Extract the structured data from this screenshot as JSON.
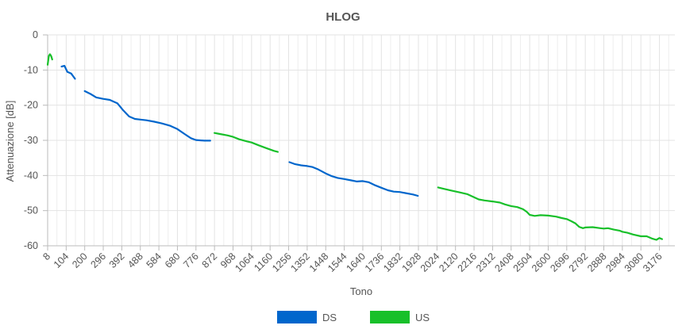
{
  "chart_data": {
    "type": "line",
    "title": "HLOG",
    "xlabel": "Tono",
    "ylabel": "Attenuazione [dB]",
    "xlim": [
      8,
      3256
    ],
    "ylim": [
      -60,
      0
    ],
    "x_ticks": [
      8,
      104,
      200,
      296,
      392,
      488,
      584,
      680,
      776,
      872,
      968,
      1064,
      1160,
      1256,
      1352,
      1448,
      1544,
      1640,
      1736,
      1832,
      1928,
      2024,
      2120,
      2216,
      2312,
      2408,
      2504,
      2600,
      2696,
      2792,
      2888,
      2984,
      3080,
      3176
    ],
    "y_ticks": [
      0,
      -10,
      -20,
      -30,
      -40,
      -50,
      -60
    ],
    "grid": true,
    "legend_position": "bottom",
    "series": [
      {
        "name": "DS",
        "color": "#0066cc",
        "segments": [
          [
            [
              80,
              -9.0
            ],
            [
              95,
              -8.8
            ],
            [
              110,
              -10.5
            ],
            [
              130,
              -11.0
            ],
            [
              150,
              -12.5
            ]
          ],
          [
            [
              200,
              -16.0
            ],
            [
              230,
              -16.8
            ],
            [
              260,
              -17.8
            ],
            [
              296,
              -18.2
            ],
            [
              330,
              -18.5
            ],
            [
              370,
              -19.5
            ],
            [
              400,
              -21.5
            ],
            [
              430,
              -23.2
            ],
            [
              460,
              -23.9
            ],
            [
              488,
              -24.1
            ],
            [
              520,
              -24.3
            ],
            [
              560,
              -24.7
            ],
            [
              600,
              -25.2
            ],
            [
              640,
              -25.8
            ],
            [
              680,
              -26.8
            ],
            [
              720,
              -28.3
            ],
            [
              750,
              -29.4
            ],
            [
              776,
              -29.9
            ],
            [
              820,
              -30.1
            ],
            [
              850,
              -30.1
            ]
          ],
          [
            [
              1260,
              -36.2
            ],
            [
              1290,
              -36.8
            ],
            [
              1320,
              -37.1
            ],
            [
              1352,
              -37.3
            ],
            [
              1380,
              -37.6
            ],
            [
              1410,
              -38.3
            ],
            [
              1448,
              -39.4
            ],
            [
              1480,
              -40.2
            ],
            [
              1510,
              -40.7
            ],
            [
              1544,
              -41.0
            ],
            [
              1580,
              -41.4
            ],
            [
              1610,
              -41.7
            ],
            [
              1640,
              -41.6
            ],
            [
              1670,
              -41.9
            ],
            [
              1700,
              -42.7
            ],
            [
              1736,
              -43.5
            ],
            [
              1770,
              -44.2
            ],
            [
              1800,
              -44.6
            ],
            [
              1832,
              -44.7
            ],
            [
              1860,
              -45.0
            ],
            [
              1900,
              -45.4
            ],
            [
              1925,
              -45.8
            ]
          ]
        ]
      },
      {
        "name": "US",
        "color": "#18c02a",
        "segments": [
          [
            [
              8,
              -8.5
            ],
            [
              14,
              -6.0
            ],
            [
              20,
              -5.5
            ],
            [
              26,
              -6.0
            ],
            [
              32,
              -7.0
            ]
          ],
          [
            [
              872,
              -27.9
            ],
            [
              900,
              -28.2
            ],
            [
              940,
              -28.6
            ],
            [
              968,
              -29.0
            ],
            [
              1000,
              -29.7
            ],
            [
              1040,
              -30.3
            ],
            [
              1064,
              -30.6
            ],
            [
              1100,
              -31.4
            ],
            [
              1140,
              -32.2
            ],
            [
              1180,
              -33.0
            ],
            [
              1200,
              -33.3
            ]
          ],
          [
            [
              2030,
              -43.4
            ],
            [
              2060,
              -43.8
            ],
            [
              2100,
              -44.3
            ],
            [
              2140,
              -44.8
            ],
            [
              2180,
              -45.3
            ],
            [
              2216,
              -46.2
            ],
            [
              2240,
              -46.8
            ],
            [
              2270,
              -47.1
            ],
            [
              2312,
              -47.4
            ],
            [
              2350,
              -47.7
            ],
            [
              2380,
              -48.3
            ],
            [
              2408,
              -48.7
            ],
            [
              2440,
              -49.0
            ],
            [
              2470,
              -49.6
            ],
            [
              2490,
              -50.4
            ],
            [
              2504,
              -51.2
            ],
            [
              2530,
              -51.5
            ],
            [
              2560,
              -51.3
            ],
            [
              2600,
              -51.4
            ],
            [
              2640,
              -51.7
            ],
            [
              2670,
              -52.1
            ],
            [
              2696,
              -52.4
            ],
            [
              2720,
              -53.0
            ],
            [
              2740,
              -53.6
            ],
            [
              2760,
              -54.6
            ],
            [
              2780,
              -55.0
            ],
            [
              2792,
              -54.8
            ],
            [
              2830,
              -54.7
            ],
            [
              2870,
              -55.0
            ],
            [
              2888,
              -55.1
            ],
            [
              2910,
              -55.0
            ],
            [
              2940,
              -55.4
            ],
            [
              2970,
              -55.7
            ],
            [
              2984,
              -56.0
            ],
            [
              3010,
              -56.3
            ],
            [
              3040,
              -56.8
            ],
            [
              3080,
              -57.3
            ],
            [
              3110,
              -57.3
            ],
            [
              3140,
              -58.0
            ],
            [
              3160,
              -58.3
            ],
            [
              3176,
              -57.8
            ],
            [
              3190,
              -58.1
            ]
          ]
        ]
      }
    ]
  }
}
